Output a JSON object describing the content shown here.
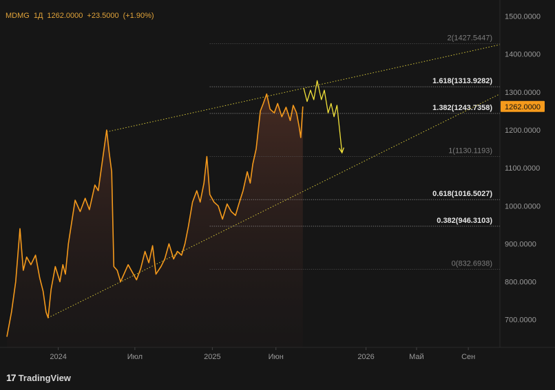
{
  "header": {
    "symbol": "MDMG",
    "interval": "1Д",
    "price": "1262.0000",
    "change": "+23.5000",
    "change_pct": "(+1.90%)"
  },
  "branding": {
    "logo_text": "TradingView"
  },
  "colors": {
    "background": "#161616",
    "price_line": "#f59a1c",
    "projection": "#f2e23a",
    "fib_lines": "#8a8a8a",
    "trend_lines": "#d6c83a",
    "axis_text": "#9a9a9a",
    "price_badge": "#f59a1c"
  },
  "chart_data": {
    "type": "line",
    "series": [
      {
        "values": [
          [
            "2023-09-01",
            655
          ],
          [
            "2023-09-12",
            720
          ],
          [
            "2023-09-22",
            800
          ],
          [
            "2023-10-02",
            940
          ],
          [
            "2023-10-10",
            830
          ],
          [
            "2023-10-18",
            865
          ],
          [
            "2023-10-28",
            845
          ],
          [
            "2023-11-08",
            870
          ],
          [
            "2023-11-18",
            810
          ],
          [
            "2023-11-26",
            775
          ],
          [
            "2023-12-03",
            720
          ],
          [
            "2023-12-08",
            705
          ],
          [
            "2023-12-15",
            780
          ],
          [
            "2023-12-25",
            840
          ],
          [
            "2024-01-05",
            800
          ],
          [
            "2024-01-12",
            845
          ],
          [
            "2024-01-18",
            820
          ],
          [
            "2024-01-25",
            900
          ],
          [
            "2024-02-03",
            965
          ],
          [
            "2024-02-10",
            1015
          ],
          [
            "2024-02-22",
            985
          ],
          [
            "2024-03-05",
            1020
          ],
          [
            "2024-03-15",
            990
          ],
          [
            "2024-03-28",
            1055
          ],
          [
            "2024-04-05",
            1040
          ],
          [
            "2024-04-15",
            1120
          ],
          [
            "2024-04-25",
            1200
          ],
          [
            "2024-05-01",
            1140
          ],
          [
            "2024-05-07",
            1090
          ],
          [
            "2024-05-12",
            840
          ],
          [
            "2024-05-20",
            830
          ],
          [
            "2024-05-28",
            800
          ],
          [
            "2024-06-05",
            820
          ],
          [
            "2024-06-15",
            845
          ],
          [
            "2024-06-25",
            825
          ],
          [
            "2024-07-05",
            805
          ],
          [
            "2024-07-15",
            835
          ],
          [
            "2024-07-25",
            880
          ],
          [
            "2024-08-03",
            850
          ],
          [
            "2024-08-12",
            895
          ],
          [
            "2024-08-20",
            820
          ],
          [
            "2024-09-01",
            840
          ],
          [
            "2024-09-10",
            860
          ],
          [
            "2024-09-20",
            900
          ],
          [
            "2024-10-01",
            860
          ],
          [
            "2024-10-10",
            880
          ],
          [
            "2024-10-20",
            870
          ],
          [
            "2024-10-28",
            900
          ],
          [
            "2024-11-05",
            945
          ],
          [
            "2024-11-15",
            1010
          ],
          [
            "2024-11-25",
            1040
          ],
          [
            "2024-12-03",
            1010
          ],
          [
            "2024-12-12",
            1060
          ],
          [
            "2024-12-19",
            1130
          ],
          [
            "2024-12-26",
            1030
          ],
          [
            "2025-01-05",
            1010
          ],
          [
            "2025-01-15",
            1000
          ],
          [
            "2025-01-25",
            965
          ],
          [
            "2025-02-05",
            1005
          ],
          [
            "2025-02-15",
            985
          ],
          [
            "2025-02-25",
            975
          ],
          [
            "2025-03-05",
            1005
          ],
          [
            "2025-03-15",
            1040
          ],
          [
            "2025-03-25",
            1090
          ],
          [
            "2025-04-01",
            1060
          ],
          [
            "2025-04-07",
            1110
          ],
          [
            "2025-04-15",
            1150
          ],
          [
            "2025-04-25",
            1250
          ],
          [
            "2025-05-02",
            1270
          ],
          [
            "2025-05-10",
            1295
          ],
          [
            "2025-05-18",
            1255
          ],
          [
            "2025-05-28",
            1245
          ],
          [
            "2025-06-05",
            1270
          ],
          [
            "2025-06-15",
            1235
          ],
          [
            "2025-06-25",
            1260
          ],
          [
            "2025-07-05",
            1225
          ],
          [
            "2025-07-12",
            1265
          ],
          [
            "2025-07-20",
            1245
          ],
          [
            "2025-07-26",
            1210
          ],
          [
            "2025-07-30",
            1180
          ],
          [
            "2025-08-04",
            1262
          ]
        ]
      }
    ],
    "projection": [
      [
        "2025-08-06",
        1310
      ],
      [
        "2025-08-14",
        1275
      ],
      [
        "2025-08-22",
        1305
      ],
      [
        "2025-08-30",
        1280
      ],
      [
        "2025-09-07",
        1330
      ],
      [
        "2025-09-17",
        1280
      ],
      [
        "2025-09-24",
        1305
      ],
      [
        "2025-10-03",
        1245
      ],
      [
        "2025-10-10",
        1270
      ],
      [
        "2025-10-17",
        1235
      ],
      [
        "2025-10-24",
        1265
      ],
      [
        "2025-11-05",
        1140
      ]
    ],
    "fib_levels": [
      {
        "label": "0(832.6938)",
        "value": 832.6938,
        "emphasis": false
      },
      {
        "label": "0.382(946.3103)",
        "value": 946.3103,
        "emphasis": true
      },
      {
        "label": "0.618(1016.5027)",
        "value": 1016.5027,
        "emphasis": true
      },
      {
        "label": "1(1130.1193)",
        "value": 1130.1193,
        "emphasis": false
      },
      {
        "label": "1.382(1243.7358)",
        "value": 1243.7358,
        "emphasis": true
      },
      {
        "label": "1.618(1313.9282)",
        "value": 1313.9282,
        "emphasis": true
      },
      {
        "label": "2(1427.5447)",
        "value": 1427.5447,
        "emphasis": false
      }
    ],
    "fib_start": "2024-12-26",
    "trend_lines": [
      {
        "from": [
          "2024-04-25",
          1195
        ],
        "to": [
          "2026-11-15",
          1425
        ]
      },
      {
        "from": [
          "2023-12-08",
          705
        ],
        "to": [
          "2026-11-15",
          1295
        ]
      }
    ],
    "y_axis": {
      "ticks": [
        700,
        800,
        900,
        1000,
        1100,
        1200,
        1300,
        1400,
        1500
      ],
      "tick_labels": [
        "700.0000",
        "800.0000",
        "900.0000",
        "1000.0000",
        "1100.0000",
        "1200.0000",
        "1300.0000",
        "1400.0000",
        "1500.0000"
      ],
      "ylim": [
        627,
        1530
      ]
    },
    "x_axis": {
      "ticks": [
        {
          "date": "2024-01-01",
          "label": "2024"
        },
        {
          "date": "2024-07-01",
          "label": "Июл"
        },
        {
          "date": "2025-01-01",
          "label": "2025"
        },
        {
          "date": "2025-06-01",
          "label": "Июн"
        },
        {
          "date": "2026-01-01",
          "label": "2026"
        },
        {
          "date": "2026-05-01",
          "label": "Май"
        },
        {
          "date": "2026-09-01",
          "label": "Сен"
        }
      ],
      "xlim": [
        "2023-09-01",
        "2026-11-15"
      ]
    },
    "last_price": {
      "value": 1262,
      "label": "1262.0000"
    }
  }
}
